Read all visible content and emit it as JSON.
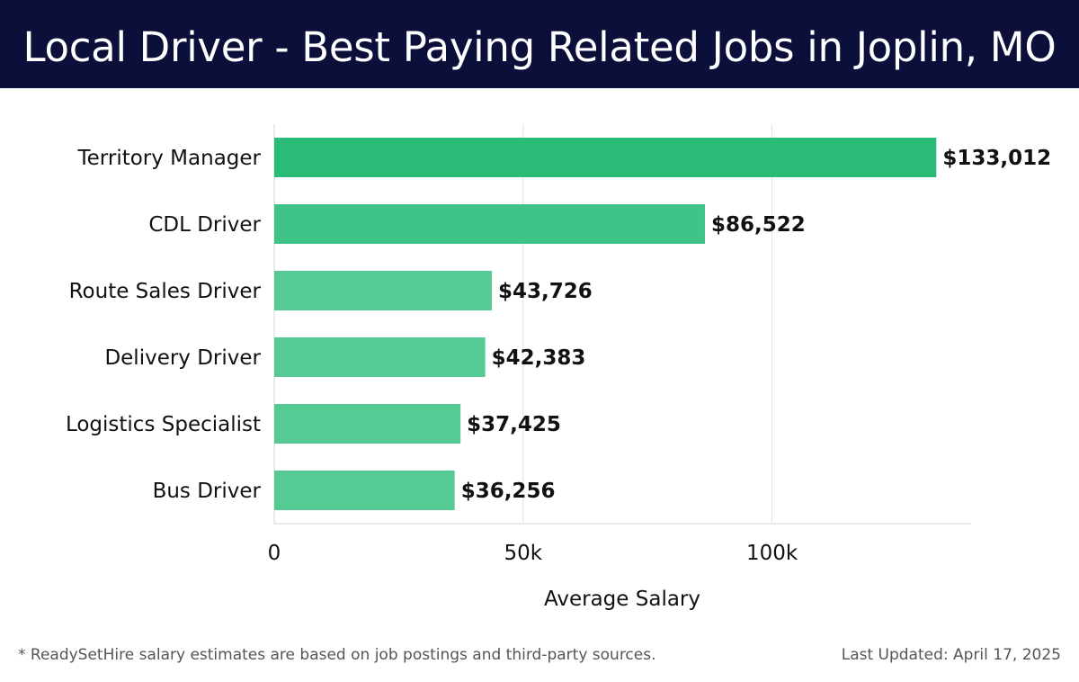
{
  "header": {
    "title": "Local Driver - Best Paying Related Jobs in Joplin, MO"
  },
  "chart_data": {
    "type": "bar",
    "orientation": "horizontal",
    "title": "Local Driver - Best Paying Related Jobs in Joplin, MO",
    "xlabel": "Average Salary",
    "ylabel": "",
    "categories": [
      "Territory Manager",
      "CDL Driver",
      "Route Sales Driver",
      "Delivery Driver",
      "Logistics Specialist",
      "Bus Driver"
    ],
    "values": [
      133012,
      86522,
      43726,
      42383,
      37425,
      36256
    ],
    "value_labels": [
      "$133,012",
      "$86,522",
      "$43,726",
      "$42,383",
      "$37,425",
      "$36,256"
    ],
    "xlim": [
      0,
      140000
    ],
    "xticks": [
      0,
      50000,
      100000
    ],
    "xtick_labels": [
      "0",
      "50k",
      "100k"
    ],
    "grid": "vertical",
    "colors": [
      "#2abb76",
      "#40c386",
      "#55cb93",
      "#55cb93",
      "#55cb93",
      "#55cb93"
    ]
  },
  "footer": {
    "note": "* ReadySetHire salary estimates are based on job postings and third-party sources.",
    "updated": "Last Updated: April 17, 2025"
  }
}
